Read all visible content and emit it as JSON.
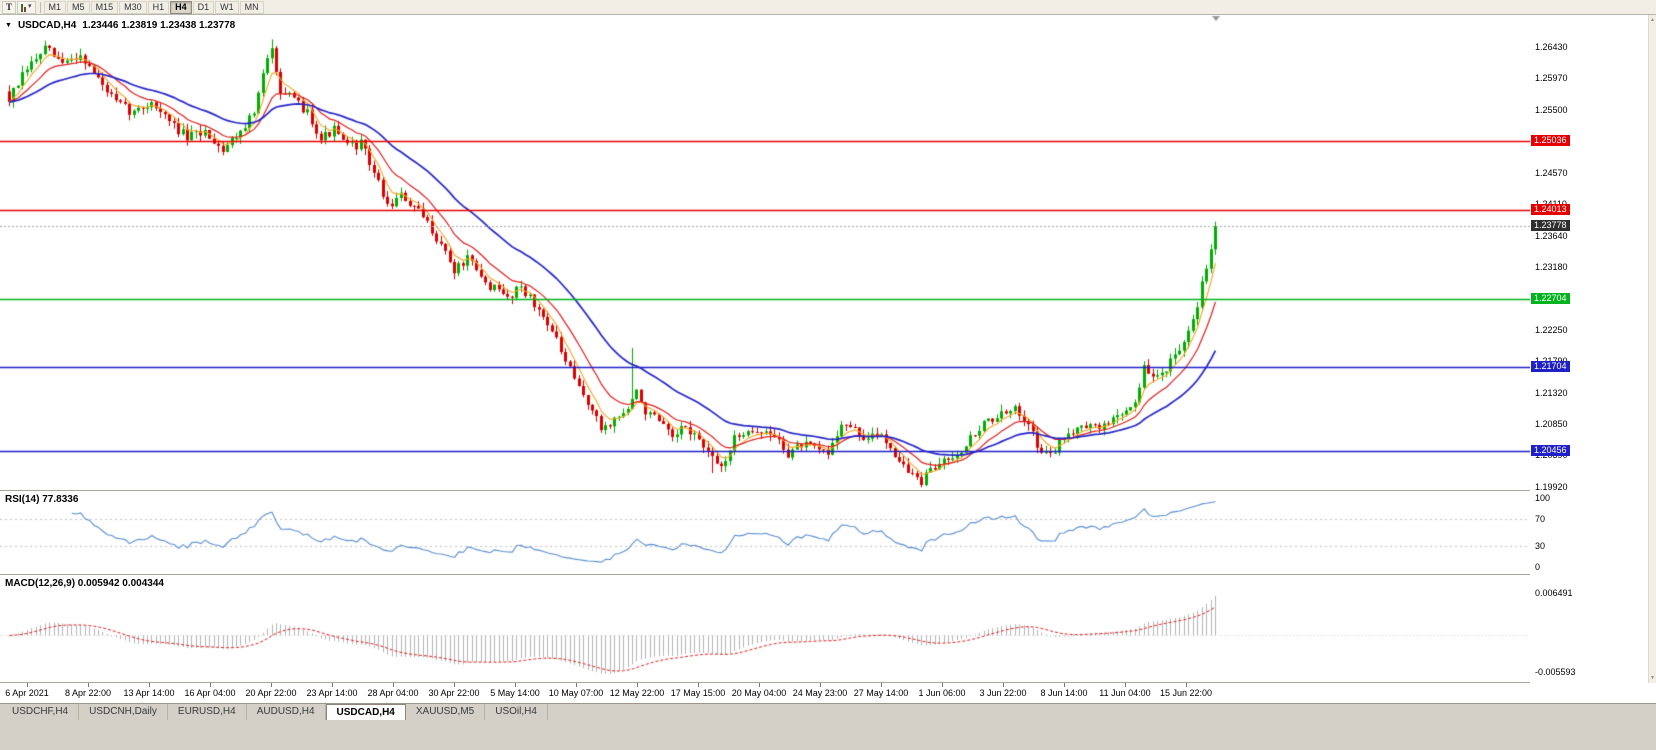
{
  "toolbar": {
    "t_label": "T",
    "timeframes": [
      "M1",
      "M5",
      "M15",
      "M30",
      "H1",
      "H4",
      "D1",
      "W1",
      "MN"
    ],
    "active": "H4"
  },
  "chart_header": {
    "symbol": "USDCAD,H4",
    "ohlc": "1.23446 1.23819 1.23438 1.23778"
  },
  "price_axis": {
    "scale_labels": [
      {
        "text": "1.26430",
        "price": 1.2643
      },
      {
        "text": "1.25970",
        "price": 1.2597
      },
      {
        "text": "1.25500",
        "price": 1.255
      },
      {
        "text": "1.24570",
        "price": 1.2457
      },
      {
        "text": "1.24110",
        "price": 1.2411
      },
      {
        "text": "1.23640",
        "price": 1.2364
      },
      {
        "text": "1.23180",
        "price": 1.2318
      },
      {
        "text": "1.22250",
        "price": 1.2225
      },
      {
        "text": "1.21790",
        "price": 1.2179
      },
      {
        "text": "1.21320",
        "price": 1.2132
      },
      {
        "text": "1.20850",
        "price": 1.2085
      },
      {
        "text": "1.20390",
        "price": 1.2039
      },
      {
        "text": "1.19920",
        "price": 1.1992
      }
    ]
  },
  "rsi": {
    "header": "RSI(14) 77.8336",
    "value": 77.8336,
    "color": "#5B8FD0",
    "scale_labels": [
      {
        "text": "100",
        "value": 100
      },
      {
        "text": "70",
        "value": 70
      },
      {
        "text": "30",
        "value": 30
      },
      {
        "text": "0",
        "value": 0
      }
    ]
  },
  "macd": {
    "header": "MACD(12,26,9) 0.005942 0.004344",
    "macd_value": 0.005942,
    "signal_value": 0.004344,
    "top_label": "0.006491",
    "bottom_label": "-0.005593"
  },
  "time_axis": {
    "labels": [
      "6 Apr 2021",
      "8 Apr 22:00",
      "13 Apr 14:00",
      "16 Apr 04:00",
      "20 Apr 22:00",
      "23 Apr 14:00",
      "28 Apr 04:00",
      "30 Apr 22:00",
      "5 May 14:00",
      "10 May 07:00",
      "12 May 22:00",
      "17 May 15:00",
      "20 May 04:00",
      "24 May 23:00",
      "27 May 14:00",
      "1 Jun 06:00",
      "3 Jun 22:00",
      "8 Jun 14:00",
      "11 Jun 04:00",
      "15 Jun 22:00"
    ]
  },
  "tabs": {
    "items": [
      {
        "label": "USDCHF,H4"
      },
      {
        "label": "USDCNH,Daily"
      },
      {
        "label": "EURUSD,H4"
      },
      {
        "label": "AUDUSD,H4"
      },
      {
        "label": "USDCAD,H4"
      },
      {
        "label": "XAUUSD,M5"
      },
      {
        "label": "USOil,H4"
      }
    ],
    "active": "USDCAD,H4"
  },
  "chart_data": {
    "type": "candlestick",
    "symbol": "USDCAD",
    "timeframe": "H4",
    "open": "1.23446",
    "high": "1.23819",
    "low": "1.23438",
    "close": "1.23778",
    "bid": 1.23778,
    "y_range": {
      "top": 1.269,
      "bottom": 1.1988
    },
    "num_candles": 272,
    "last_close": 1.23778,
    "noise": 0.0014,
    "wick": 0.001,
    "seed": 7,
    "up_color": "#00AD00",
    "down_color": "#DD0000",
    "layout": {
      "x0": 8,
      "dx": 4.45,
      "candle_w": 3,
      "time_first_x": 27,
      "time_spacing": 61
    },
    "anchors": [
      [
        0,
        1.2565
      ],
      [
        4,
        1.261
      ],
      [
        8,
        1.264
      ],
      [
        12,
        1.2618
      ],
      [
        16,
        1.2632
      ],
      [
        20,
        1.2595
      ],
      [
        24,
        1.256
      ],
      [
        28,
        1.2545
      ],
      [
        32,
        1.2562
      ],
      [
        36,
        1.2532
      ],
      [
        40,
        1.2508
      ],
      [
        44,
        1.2518
      ],
      [
        48,
        1.2492
      ],
      [
        52,
        1.252
      ],
      [
        55,
        1.2545
      ],
      [
        57,
        1.26
      ],
      [
        59,
        1.2645
      ],
      [
        61,
        1.258
      ],
      [
        64,
        1.2562
      ],
      [
        67,
        1.2548
      ],
      [
        70,
        1.2508
      ],
      [
        73,
        1.252
      ],
      [
        76,
        1.2495
      ],
      [
        79,
        1.25
      ],
      [
        82,
        1.2458
      ],
      [
        85,
        1.2408
      ],
      [
        88,
        1.2422
      ],
      [
        91,
        1.2405
      ],
      [
        94,
        1.2382
      ],
      [
        97,
        1.2352
      ],
      [
        100,
        1.2312
      ],
      [
        103,
        1.233
      ],
      [
        106,
        1.23
      ],
      [
        109,
        1.2285
      ],
      [
        112,
        1.2272
      ],
      [
        115,
        1.2292
      ],
      [
        118,
        1.226
      ],
      [
        121,
        1.2238
      ],
      [
        124,
        1.2192
      ],
      [
        127,
        1.215
      ],
      [
        130,
        1.2118
      ],
      [
        133,
        1.2078
      ],
      [
        136,
        1.2092
      ],
      [
        139,
        1.2108
      ],
      [
        141,
        1.2132
      ],
      [
        143,
        1.2105
      ],
      [
        146,
        1.2088
      ],
      [
        149,
        1.2062
      ],
      [
        152,
        1.2082
      ],
      [
        155,
        1.2062
      ],
      [
        158,
        1.2032
      ],
      [
        160,
        1.2022
      ],
      [
        163,
        1.2062
      ],
      [
        166,
        1.208
      ],
      [
        169,
        1.2072
      ],
      [
        172,
        1.2068
      ],
      [
        175,
        1.2042
      ],
      [
        178,
        1.2055
      ],
      [
        181,
        1.2048
      ],
      [
        184,
        1.2042
      ],
      [
        187,
        1.2088
      ],
      [
        190,
        1.2075
      ],
      [
        193,
        1.2062
      ],
      [
        196,
        1.2072
      ],
      [
        199,
        1.2042
      ],
      [
        202,
        1.2015
      ],
      [
        205,
        1.2
      ],
      [
        208,
        1.2022
      ],
      [
        211,
        1.2038
      ],
      [
        214,
        1.2048
      ],
      [
        217,
        1.2072
      ],
      [
        220,
        1.2092
      ],
      [
        223,
        1.2098
      ],
      [
        226,
        1.2105
      ],
      [
        229,
        1.2092
      ],
      [
        232,
        1.2038
      ],
      [
        235,
        1.2048
      ],
      [
        238,
        1.2072
      ],
      [
        241,
        1.2088
      ],
      [
        244,
        1.2078
      ],
      [
        247,
        1.2088
      ],
      [
        250,
        1.2102
      ],
      [
        253,
        1.2118
      ],
      [
        255,
        1.2168
      ],
      [
        257,
        1.2152
      ],
      [
        259,
        1.2162
      ],
      [
        261,
        1.2178
      ],
      [
        263,
        1.2188
      ],
      [
        265,
        1.2218
      ],
      [
        267,
        1.2262
      ],
      [
        269,
        1.2322
      ],
      [
        271,
        1.23778
      ]
    ],
    "wick_events": [
      {
        "i": 8,
        "high": 1.2652
      },
      {
        "i": 59,
        "high": 1.2654
      },
      {
        "i": 140,
        "high": 1.2198
      },
      {
        "i": 158,
        "low": 1.2013
      },
      {
        "i": 205,
        "low": 1.1992
      },
      {
        "i": 271,
        "high": 1.23819
      }
    ],
    "indicators": {
      "ma": [
        {
          "period": 5,
          "color": "#F5A623",
          "width": 1.1
        },
        {
          "period": 12,
          "color": "#E02020",
          "width": 1.2
        },
        {
          "period": 30,
          "color": "#2626C9",
          "width": 1.7
        }
      ],
      "rsi_period": 14,
      "macd": {
        "fast": 12,
        "slow": 26,
        "signal": 9
      }
    },
    "hlines": [
      {
        "price": 1.25036,
        "color": "#E60000",
        "width": 1.7,
        "label": "1.25036",
        "label_bg": "#E60000"
      },
      {
        "price": 1.24013,
        "color": "#E60000",
        "width": 1.7,
        "label": "1.24013",
        "label_bg": "#E60000"
      },
      {
        "price": 1.23778,
        "color": "#A8A8A8",
        "width": 1,
        "style": "dotted",
        "label": "1.23778",
        "label_bg": "#2F2F2F"
      },
      {
        "price": 1.22704,
        "color": "#00B41E",
        "width": 1.7,
        "label": "1.22704",
        "label_bg": "#00B41E"
      },
      {
        "price": 1.21704,
        "color": "#2020C8",
        "width": 1.7,
        "label": "1.21704",
        "label_bg": "#2020C8"
      },
      {
        "price": 1.20456,
        "color": "#2020C8",
        "width": 1.7,
        "label": "1.20456",
        "label_bg": "#2020C8"
      }
    ],
    "macd_range": {
      "top": 0.006491,
      "bottom": -0.005593
    },
    "rsi_levels": [
      70,
      30
    ]
  }
}
